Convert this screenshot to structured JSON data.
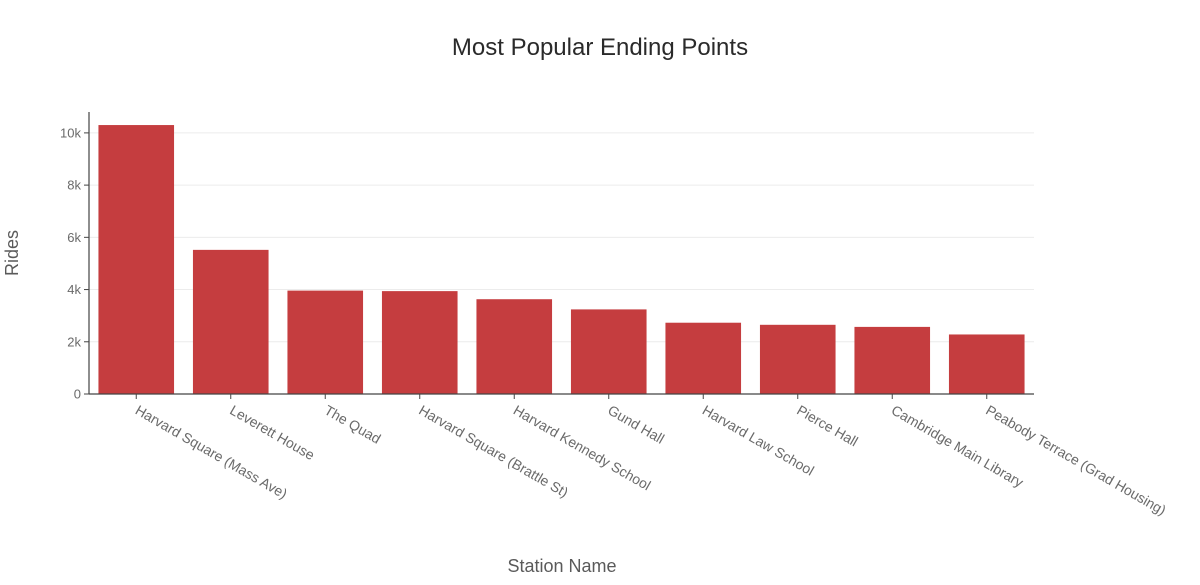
{
  "chart_data": {
    "type": "bar",
    "title": "Most Popular Ending Points",
    "xlabel": "Station Name",
    "ylabel": "Rides",
    "categories": [
      "Harvard Square (Mass Ave)",
      "Leverett House",
      "The Quad",
      "Harvard Square (Brattle St)",
      "Harvard Kennedy School",
      "Gund Hall",
      "Harvard Law School",
      "Pierce Hall",
      "Cambridge Main Library",
      "Peabody Terrace (Grad Housing)"
    ],
    "values": [
      10300,
      5520,
      3960,
      3940,
      3630,
      3240,
      2730,
      2650,
      2570,
      2280
    ],
    "ylim": [
      0,
      10800
    ],
    "yticks": [
      0,
      2000,
      4000,
      6000,
      8000,
      10000
    ],
    "ytick_labels": [
      "0",
      "2k",
      "4k",
      "6k",
      "8k",
      "10k"
    ],
    "bar_color": "#c53d3f",
    "grid": true
  }
}
